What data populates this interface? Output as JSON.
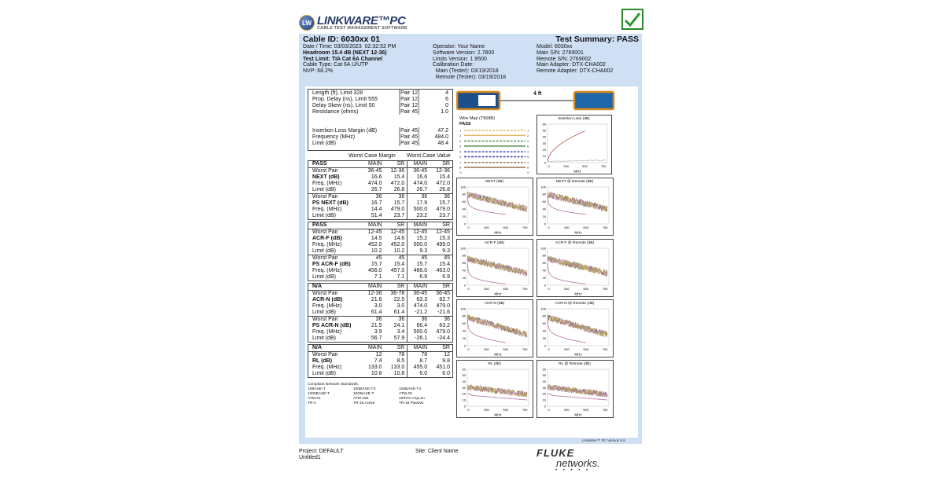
{
  "logo": {
    "name": "LINKWARE™PC",
    "subtitle": "CABLE TEST MANAGEMENT SOFTWARE",
    "badge": "LW"
  },
  "result_icon": "check-icon",
  "colors": {
    "frame": "#cfe0f5",
    "pass_green": "#2a8a2a",
    "logo_blue": "#2a3d6b"
  },
  "header": {
    "cable_id": "Cable ID: 6030xx  01",
    "test_summary": "Test Summary: PASS",
    "col1": [
      "Date / Time: 03/03/2023  02:32:52 PM",
      "Headroom 15.4 dB (NEXT 12-36)",
      "Test Limit: TIA Cat 6A Channel",
      "Cable Type: Cat 6A U/UTP",
      "NVP: 68.2%"
    ],
    "col2": [
      "Operator: Your Name",
      "Software Version: 2.7800",
      "Limits Version: 1.9500",
      "Calibration Date:",
      "  Main (Tester): 03/19/2018",
      "  Remote (Tester): 03/19/2018"
    ],
    "col3": [
      "Model: 6030xx",
      "Main S/N: 2769001",
      "Remote S/N: 2769002",
      "Main Adapter: DTX-CHA002",
      "Remote Adapter: DTX-CHA002"
    ]
  },
  "measurements": [
    [
      "Length (ft), Limit 328",
      "[Pair 12]",
      "4"
    ],
    [
      "Prop. Delay (ns), Limit 555",
      "[Pair 12]",
      "6"
    ],
    [
      "Delay Skew (ns), Limit 50",
      "[Pair 12]",
      "0"
    ],
    [
      "Resistance (ohms)",
      "[Pair 45]",
      "1.0"
    ],
    [
      "",
      "",
      ""
    ],
    [
      "",
      "",
      ""
    ],
    [
      "Insertion Loss Margin (dB)",
      "[Pair 45]",
      "47.2"
    ],
    [
      "Frequency (MHz)",
      "[Pair 45]",
      "484.0"
    ],
    [
      "Limit (dB)",
      "[Pair 45]",
      "48.4"
    ]
  ],
  "worst_case": {
    "margin": "Worst Case Margin",
    "value": "Worst Case Value"
  },
  "summary_tables": [
    {
      "head": [
        "PASS",
        "MAIN",
        "SR",
        "MAIN",
        "SR"
      ],
      "groups": [
        [
          [
            "Worst Pair",
            "36-45",
            "12-36",
            "36-45",
            "12-36"
          ],
          [
            "NEXT (dB)",
            "16.6",
            "15.4",
            "16.6",
            "15.4"
          ],
          [
            "Freq. (MHz)",
            "474.0",
            "472.0",
            "474.0",
            "472.0"
          ],
          [
            "Limit (dB)",
            "26.7",
            "26.8",
            "26.7",
            "26.8"
          ]
        ],
        [
          [
            "Worst Pair",
            "36",
            "36",
            "36",
            "36"
          ],
          [
            "PS NEXT (dB)",
            "16.7",
            "15.7",
            "17.9",
            "15.7"
          ],
          [
            "Freq. (MHz)",
            "14.4",
            "479.0",
            "500.0",
            "479.0"
          ],
          [
            "Limit (dB)",
            "51.4",
            "23.7",
            "23.2",
            "23.7"
          ]
        ]
      ]
    },
    {
      "head": [
        "PASS",
        "MAIN",
        "SR",
        "MAIN",
        "SR"
      ],
      "groups": [
        [
          [
            "Worst Pair",
            "12-45",
            "12-45",
            "12-45",
            "12-45"
          ],
          [
            "ACR-F (dB)",
            "14.5",
            "14.6",
            "15.2",
            "15.3"
          ],
          [
            "Freq. (MHz)",
            "452.0",
            "452.0",
            "500.0",
            "499.0"
          ],
          [
            "Limit (dB)",
            "10.2",
            "10.2",
            "9.3",
            "9.3"
          ]
        ],
        [
          [
            "Worst Pair",
            "45",
            "45",
            "45",
            "45"
          ],
          [
            "PS ACR-F (dB)",
            "15.7",
            "15.4",
            "15.7",
            "15.4"
          ],
          [
            "Freq. (MHz)",
            "456.0",
            "457.0",
            "466.0",
            "463.0"
          ],
          [
            "Limit (dB)",
            "7.1",
            "7.1",
            "6.9",
            "6.9"
          ]
        ]
      ]
    },
    {
      "head": [
        "N/A",
        "MAIN",
        "SR",
        "MAIN",
        "SR"
      ],
      "groups": [
        [
          [
            "Worst Pair",
            "12-36",
            "36-78",
            "36-45",
            "36-45"
          ],
          [
            "ACR-N (dB)",
            "21.6",
            "22.5",
            "63.3",
            "62.7"
          ],
          [
            "Freq. (MHz)",
            "3.0",
            "3.0",
            "474.0",
            "479.0"
          ],
          [
            "Limit (dB)",
            "61.4",
            "61.4",
            "-21.2",
            "-21.6"
          ]
        ],
        [
          [
            "Worst Pair",
            "36",
            "36",
            "36",
            "36"
          ],
          [
            "PS ACR-N (dB)",
            "21.5",
            "24.1",
            "66.4",
            "63.2"
          ],
          [
            "Freq. (MHz)",
            "3.9",
            "3.4",
            "500.0",
            "479.0"
          ],
          [
            "Limit (dB)",
            "56.7",
            "57.9",
            "-26.1",
            "-24.4"
          ]
        ]
      ]
    },
    {
      "head": [
        "N/A",
        "MAIN",
        "SR",
        "MAIN",
        "SR"
      ],
      "groups": [
        [
          [
            "Worst Pair",
            "12",
            "78",
            "78",
            "12"
          ],
          [
            "RL (dB)",
            "7.4",
            "8.5",
            "8.7",
            "9.8"
          ],
          [
            "Freq. (MHz)",
            "133.0",
            "133.0",
            "455.0",
            "451.0"
          ],
          [
            "Limit (dB)",
            "10.8",
            "10.8",
            "6.0",
            "6.0"
          ]
        ]
      ]
    }
  ],
  "standards": {
    "title": "Compliant Network Standards:",
    "items": [
      "10BASE-T",
      "100BASE-TX",
      "100BASE-T4",
      "1000BASE-T",
      "10GBASE-T",
      "ATM-25",
      "ATM-51",
      "ATM-155",
      "100VG-AnyLan",
      "TR-4",
      "TR-16 Active",
      "TR-16 Passive"
    ]
  },
  "link": {
    "length_label": "4 ft"
  },
  "wire_map": {
    "title": "Wire Map (T568B)",
    "status": "PASS",
    "pins": [
      "1",
      "2",
      "3",
      "6",
      "4",
      "5",
      "7",
      "8",
      "S"
    ],
    "colors": [
      "#e0b860",
      "#e0b860",
      "#4a8a4a",
      "#4a8a4a",
      "#3040b0",
      "#3040b0",
      "#8a6a40",
      "#8a6a40",
      "#888"
    ]
  },
  "charts": [
    {
      "title": "Insertion Loss (dB)",
      "yticks": [
        "60",
        "50",
        "40",
        "30",
        "20",
        "10",
        "0"
      ],
      "xticks": [
        "0",
        "250",
        "500",
        "750"
      ],
      "xlabel": "MHz",
      "kind": "il"
    },
    {
      "title": "NEXT (dB)",
      "yticks": [
        "100",
        "80",
        "60",
        "40",
        "20",
        "0"
      ],
      "xticks": [
        "0",
        "250",
        "500",
        "750"
      ],
      "xlabel": "MHz",
      "kind": "next"
    },
    {
      "title": "NEXT @ Remote (dB)",
      "yticks": [
        "100",
        "80",
        "60",
        "40",
        "20",
        "0"
      ],
      "xticks": [
        "0",
        "250",
        "500",
        "750"
      ],
      "xlabel": "MHz",
      "kind": "next"
    },
    {
      "title": "ACR-F (dB)",
      "yticks": [
        "100",
        "80",
        "60",
        "40",
        "20",
        "0"
      ],
      "xticks": [
        "0",
        "250",
        "500",
        "750"
      ],
      "xlabel": "MHz",
      "kind": "acrf"
    },
    {
      "title": "ACR-F @ Remote (dB)",
      "yticks": [
        "100",
        "80",
        "60",
        "40",
        "20",
        "0"
      ],
      "xticks": [
        "0",
        "250",
        "500",
        "750"
      ],
      "xlabel": "MHz",
      "kind": "acrf"
    },
    {
      "title": "ACR-N (dB)",
      "yticks": [
        "100",
        "80",
        "60",
        "40",
        "20",
        "0"
      ],
      "xticks": [
        "0",
        "250",
        "500",
        "750"
      ],
      "xlabel": "MHz",
      "kind": "acrn"
    },
    {
      "title": "ACR-N @ Remote (dB)",
      "yticks": [
        "100",
        "80",
        "60",
        "40",
        "20",
        "0"
      ],
      "xticks": [
        "0",
        "250",
        "500",
        "750"
      ],
      "xlabel": "MHz",
      "kind": "acrn"
    },
    {
      "title": "RL (dB)",
      "yticks": [
        "60",
        "50",
        "40",
        "30",
        "20",
        "10",
        "0"
      ],
      "xticks": [
        "0",
        "250",
        "500",
        "750"
      ],
      "xlabel": "MHz",
      "kind": "rl"
    },
    {
      "title": "RL @ Remote (dB)",
      "yticks": [
        "60",
        "50",
        "40",
        "30",
        "20",
        "10",
        "0"
      ],
      "xticks": [
        "0",
        "250",
        "500",
        "750"
      ],
      "xlabel": "MHz",
      "kind": "rl"
    }
  ],
  "version": "LinkWare™ PC Version 9.9",
  "footer": {
    "project": "Project: DEFAULT",
    "untitled": "Untitled1",
    "site": "Site: Client Name",
    "brand_top": "FLUKE",
    "brand_bottom": "networks."
  }
}
